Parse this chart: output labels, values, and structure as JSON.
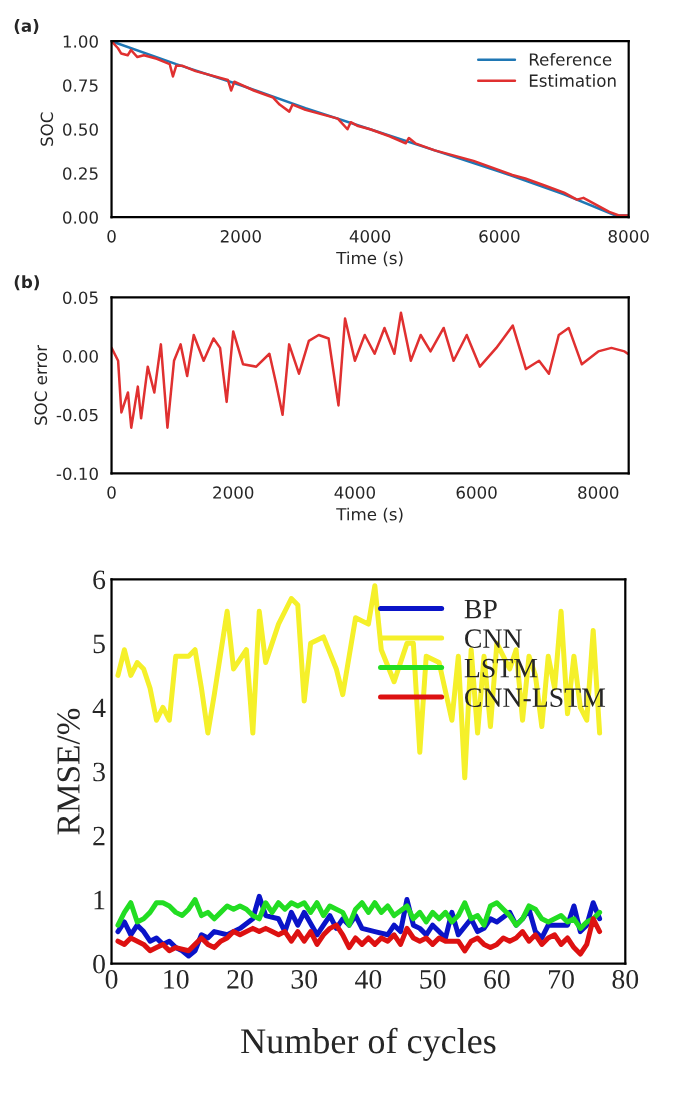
{
  "chart_data": [
    {
      "type": "line",
      "xlabel": "Time (s)",
      "ylabel": "SOC",
      "annotations": [
        "(a)"
      ],
      "legend": "top right",
      "grid": false,
      "xlim": [
        0,
        8000
      ],
      "xticks": [
        0,
        2000,
        4000,
        6000,
        8000
      ],
      "ylim": [
        0,
        1.0
      ],
      "yticks": [
        {
          "value": 0,
          "label": "0.00"
        },
        {
          "value": 0.25,
          "label": "0.25"
        },
        {
          "value": 0.5,
          "label": "0.50"
        },
        {
          "value": 0.75,
          "label": "0.75"
        },
        {
          "value": 1.0,
          "label": "1.00"
        }
      ],
      "series": [
        {
          "name": "Reference",
          "color": "#1f77b4",
          "x": [
            0,
            1000,
            2000,
            3000,
            4000,
            5000,
            6000,
            7000,
            7800,
            8000
          ],
          "values": [
            1.0,
            0.87,
            0.75,
            0.62,
            0.5,
            0.38,
            0.26,
            0.13,
            0.01,
            0.01
          ]
        },
        {
          "name": "Estimation",
          "color": "#e03030",
          "x": [
            0,
            100,
            150,
            250,
            300,
            400,
            500,
            700,
            900,
            950,
            1000,
            1100,
            1300,
            1500,
            1800,
            1850,
            1900,
            2200,
            2500,
            2600,
            2750,
            2800,
            3000,
            3300,
            3500,
            3650,
            3700,
            3800,
            4000,
            4300,
            4550,
            4600,
            4700,
            5000,
            5300,
            5600,
            5900,
            6200,
            6400,
            6700,
            7000,
            7200,
            7300,
            7500,
            7700,
            7850,
            8000
          ],
          "values": [
            1.0,
            0.96,
            0.93,
            0.92,
            0.95,
            0.91,
            0.92,
            0.9,
            0.87,
            0.8,
            0.86,
            0.86,
            0.83,
            0.81,
            0.78,
            0.72,
            0.77,
            0.72,
            0.68,
            0.64,
            0.6,
            0.64,
            0.61,
            0.58,
            0.56,
            0.5,
            0.54,
            0.52,
            0.5,
            0.46,
            0.42,
            0.45,
            0.42,
            0.38,
            0.35,
            0.32,
            0.28,
            0.24,
            0.22,
            0.18,
            0.14,
            0.1,
            0.11,
            0.07,
            0.03,
            0.01,
            0.01
          ]
        }
      ]
    },
    {
      "type": "line",
      "xlabel": "Time (s)",
      "ylabel": "SOC error",
      "annotations": [
        "(b)"
      ],
      "grid": false,
      "xlim": [
        0,
        8500
      ],
      "xticks": [
        0,
        2000,
        4000,
        6000,
        8000
      ],
      "ylim": [
        -0.1,
        0.05
      ],
      "yticks": [
        {
          "value": -0.1,
          "label": "-0.10"
        },
        {
          "value": -0.05,
          "label": "-0.05"
        },
        {
          "value": 0,
          "label": "0.00"
        },
        {
          "value": 0.05,
          "label": "0.05"
        }
      ],
      "series": [
        {
          "color": "#e03030",
          "x": [
            0,
            108,
            162,
            270,
            324,
            432,
            486,
            595,
            703,
            811,
            919,
            1027,
            1135,
            1243,
            1351,
            1514,
            1676,
            1784,
            1892,
            2000,
            2162,
            2378,
            2595,
            2703,
            2811,
            2919,
            3081,
            3243,
            3405,
            3568,
            3730,
            3838,
            4000,
            4162,
            4324,
            4486,
            4649,
            4757,
            4919,
            5081,
            5243,
            5459,
            5622,
            5838,
            6054,
            6324,
            6595,
            6811,
            7027,
            7189,
            7351,
            7514,
            7730,
            8000,
            8216,
            8432,
            8486
          ],
          "values": [
            0.007,
            -0.004,
            -0.048,
            -0.031,
            -0.061,
            -0.026,
            -0.053,
            -0.009,
            -0.031,
            0.01,
            -0.061,
            -0.004,
            0.01,
            -0.017,
            0.018,
            -0.004,
            0.015,
            0.007,
            -0.039,
            0.021,
            -0.007,
            -0.009,
            0.002,
            -0.023,
            -0.05,
            0.01,
            -0.015,
            0.013,
            0.018,
            0.015,
            -0.042,
            0.032,
            -0.004,
            0.018,
            0.002,
            0.024,
            0.002,
            0.037,
            -0.004,
            0.018,
            0.004,
            0.024,
            -0.004,
            0.018,
            -0.009,
            0.007,
            0.026,
            -0.011,
            -0.004,
            -0.015,
            0.018,
            0.024,
            -0.007,
            0.004,
            0.007,
            0.004,
            0.002
          ]
        }
      ]
    },
    {
      "type": "line",
      "xlabel": "Number of cycles",
      "ylabel": "RMSE/%",
      "legend": "top right",
      "grid": false,
      "xlim": [
        0,
        80
      ],
      "xticks": [
        0,
        10,
        20,
        30,
        40,
        50,
        60,
        70,
        80
      ],
      "ylim": [
        0,
        6
      ],
      "yticks": [
        0,
        1,
        2,
        3,
        4,
        5,
        6
      ],
      "series": [
        {
          "name": "BP",
          "color": "#0a14c8",
          "x": [
            1,
            2,
            3,
            4,
            5,
            6,
            7,
            8,
            9,
            10,
            11,
            12,
            13,
            14,
            15,
            16,
            18,
            20,
            22,
            23,
            24,
            26,
            27,
            28,
            29,
            30,
            32,
            33,
            34,
            35,
            36,
            37,
            38,
            39,
            41,
            43,
            44,
            45,
            46,
            47,
            48,
            49,
            50,
            51,
            52,
            53,
            54,
            56,
            57,
            58,
            59,
            60,
            62,
            63,
            64,
            65,
            66,
            67,
            68,
            70,
            71,
            72,
            73,
            74,
            75,
            76
          ],
          "values": [
            0.5,
            0.65,
            0.45,
            0.6,
            0.5,
            0.35,
            0.4,
            0.3,
            0.35,
            0.25,
            0.2,
            0.12,
            0.2,
            0.45,
            0.4,
            0.5,
            0.45,
            0.55,
            0.7,
            1.05,
            0.75,
            0.7,
            0.5,
            0.8,
            0.6,
            0.8,
            0.45,
            0.6,
            0.75,
            0.55,
            0.7,
            0.6,
            0.75,
            0.55,
            0.5,
            0.45,
            0.6,
            0.5,
            1.0,
            0.6,
            0.55,
            0.45,
            0.6,
            0.5,
            0.4,
            0.8,
            0.45,
            0.7,
            0.5,
            0.55,
            0.7,
            0.65,
            0.8,
            0.6,
            0.7,
            0.85,
            0.5,
            0.4,
            0.6,
            0.6,
            0.6,
            0.9,
            0.5,
            0.6,
            0.95,
            0.7
          ]
        },
        {
          "name": "CNN",
          "color": "#f5f02a",
          "x": [
            1,
            2,
            3,
            4,
            5,
            6,
            7,
            8,
            9,
            10,
            12,
            13,
            14,
            15,
            16,
            18,
            19,
            21,
            22,
            23,
            24,
            26,
            28,
            29,
            30,
            31,
            33,
            35,
            36,
            38,
            40,
            41,
            42,
            44,
            46,
            47,
            48,
            49,
            51,
            53,
            54,
            55,
            56,
            57,
            58,
            59,
            60,
            62,
            63,
            64,
            65,
            66,
            67,
            68,
            69,
            70,
            71,
            72,
            73,
            74,
            75,
            76
          ],
          "values": [
            4.5,
            4.9,
            4.5,
            4.7,
            4.6,
            4.3,
            3.8,
            4.0,
            3.8,
            4.8,
            4.8,
            4.9,
            4.3,
            3.6,
            4.2,
            5.5,
            4.6,
            4.9,
            3.6,
            5.5,
            4.7,
            5.3,
            5.7,
            5.6,
            4.1,
            5.0,
            5.1,
            4.6,
            4.2,
            5.4,
            5.3,
            5.9,
            4.9,
            4.4,
            5.0,
            5.0,
            3.3,
            4.8,
            4.7,
            3.8,
            4.8,
            2.9,
            4.9,
            3.6,
            4.8,
            3.7,
            5.0,
            4.6,
            4.9,
            3.8,
            4.8,
            4.5,
            3.7,
            4.8,
            4.3,
            5.5,
            3.9,
            4.8,
            4.0,
            3.8,
            5.2,
            3.6
          ]
        },
        {
          "name": "LSTM",
          "color": "#22dd22",
          "x": [
            1,
            2,
            3,
            4,
            5,
            6,
            7,
            8,
            9,
            10,
            11,
            12,
            13,
            14,
            15,
            16,
            17,
            18,
            19,
            20,
            21,
            22,
            23,
            24,
            25,
            26,
            27,
            28,
            29,
            30,
            31,
            32,
            33,
            34,
            35,
            36,
            37,
            38,
            39,
            40,
            41,
            42,
            43,
            44,
            46,
            47,
            48,
            49,
            50,
            51,
            52,
            53,
            54,
            55,
            56,
            57,
            58,
            59,
            60,
            61,
            62,
            63,
            64,
            65,
            66,
            67,
            68,
            69,
            70,
            71,
            72,
            73,
            74,
            75,
            76
          ],
          "values": [
            0.6,
            0.8,
            0.95,
            0.65,
            0.7,
            0.8,
            0.95,
            0.95,
            0.9,
            0.8,
            0.75,
            0.85,
            1.0,
            0.75,
            0.8,
            0.7,
            0.8,
            0.9,
            0.85,
            0.9,
            0.85,
            0.75,
            0.7,
            0.95,
            0.8,
            0.95,
            0.85,
            0.95,
            0.9,
            0.95,
            0.8,
            0.95,
            0.75,
            0.9,
            0.85,
            0.8,
            0.6,
            0.85,
            0.95,
            0.8,
            0.95,
            0.8,
            0.9,
            0.75,
            0.9,
            0.7,
            0.8,
            0.65,
            0.8,
            0.7,
            0.8,
            0.65,
            0.75,
            0.95,
            0.7,
            0.75,
            0.6,
            0.9,
            0.95,
            0.85,
            0.75,
            0.6,
            0.7,
            0.9,
            0.85,
            0.7,
            0.65,
            0.7,
            0.75,
            0.65,
            0.7,
            0.55,
            0.65,
            0.7,
            0.8
          ]
        },
        {
          "name": "CNN-LSTM",
          "color": "#dd1111",
          "x": [
            1,
            2,
            3,
            4,
            5,
            6,
            7,
            8,
            9,
            10,
            12,
            13,
            14,
            15,
            16,
            17,
            18,
            19,
            20,
            22,
            23,
            24,
            25,
            26,
            27,
            28,
            29,
            30,
            31,
            32,
            33,
            34,
            35,
            36,
            37,
            38,
            39,
            40,
            41,
            42,
            43,
            44,
            45,
            46,
            47,
            48,
            49,
            50,
            51,
            52,
            54,
            55,
            56,
            57,
            58,
            59,
            60,
            61,
            62,
            63,
            64,
            65,
            66,
            67,
            68,
            69,
            70,
            71,
            72,
            73,
            74,
            75,
            76
          ],
          "values": [
            0.35,
            0.3,
            0.4,
            0.35,
            0.3,
            0.2,
            0.25,
            0.3,
            0.2,
            0.25,
            0.2,
            0.3,
            0.4,
            0.3,
            0.25,
            0.35,
            0.4,
            0.5,
            0.45,
            0.55,
            0.5,
            0.55,
            0.5,
            0.45,
            0.5,
            0.35,
            0.5,
            0.35,
            0.5,
            0.3,
            0.45,
            0.55,
            0.6,
            0.45,
            0.25,
            0.4,
            0.3,
            0.4,
            0.3,
            0.4,
            0.35,
            0.45,
            0.3,
            0.55,
            0.4,
            0.35,
            0.4,
            0.3,
            0.4,
            0.35,
            0.35,
            0.2,
            0.35,
            0.4,
            0.3,
            0.25,
            0.3,
            0.4,
            0.35,
            0.4,
            0.5,
            0.35,
            0.45,
            0.3,
            0.4,
            0.45,
            0.3,
            0.4,
            0.25,
            0.15,
            0.3,
            0.7,
            0.5
          ]
        }
      ]
    }
  ]
}
